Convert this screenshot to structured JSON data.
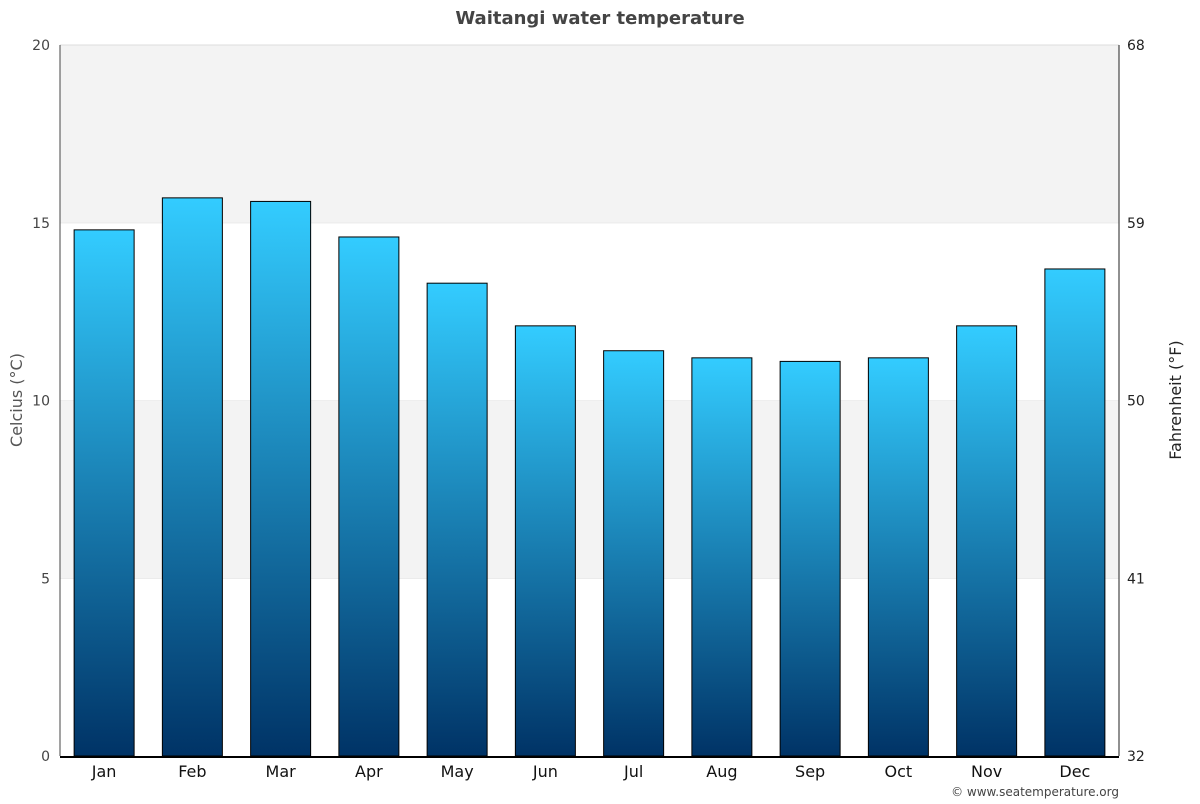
{
  "chart_data": {
    "type": "bar",
    "title": "Waitangi water temperature",
    "ylabel": "Celcius (°C)",
    "ylabel_right": "Fahrenheit (°F)",
    "categories": [
      "Jan",
      "Feb",
      "Mar",
      "Apr",
      "May",
      "Jun",
      "Jul",
      "Aug",
      "Sep",
      "Oct",
      "Nov",
      "Dec"
    ],
    "values": [
      14.8,
      15.7,
      15.6,
      14.6,
      13.3,
      12.1,
      11.4,
      11.2,
      11.1,
      11.2,
      12.1,
      13.7
    ],
    "ylim": [
      0,
      20
    ],
    "yticks": [
      0,
      5,
      10,
      15,
      20
    ],
    "yticks_right": [
      "32",
      "41",
      "50",
      "59",
      "68"
    ],
    "grid": true,
    "band_colors": [
      "#ffffff",
      "#f3f3f3"
    ],
    "bar_gradient": {
      "top": "#33ccff",
      "bottom": "#003366"
    },
    "credit": "© www.seatemperature.org"
  }
}
